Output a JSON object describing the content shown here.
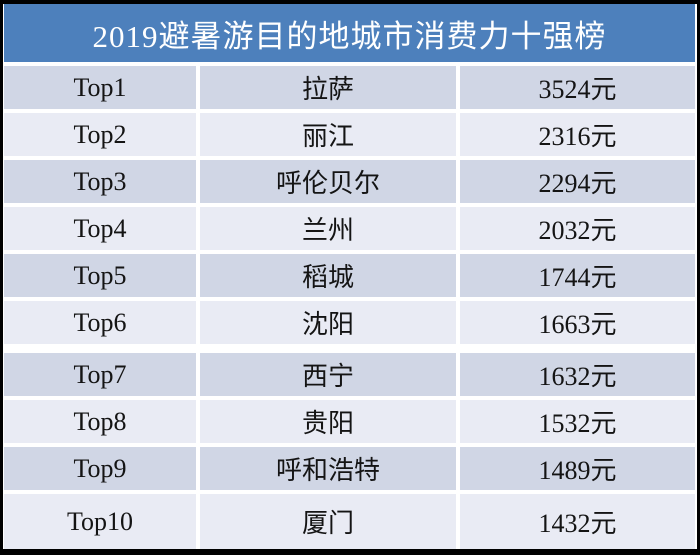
{
  "chart_data": {
    "type": "table",
    "title": "2019避暑游目的地城市消费力十强榜",
    "rows": [
      [
        "Top1",
        "拉萨",
        "3524元"
      ],
      [
        "Top2",
        "丽江",
        "2316元"
      ],
      [
        "Top3",
        "呼伦贝尔",
        "2294元"
      ],
      [
        "Top4",
        "兰州",
        "2032元"
      ],
      [
        "Top5",
        "稻城",
        "1744元"
      ],
      [
        "Top6",
        "沈阳",
        "1663元"
      ],
      [
        "Top7",
        "西宁",
        "1632元"
      ],
      [
        "Top8",
        "贵阳",
        "1532元"
      ],
      [
        "Top9",
        "呼和浩特",
        "1489元"
      ],
      [
        "Top10",
        "厦门",
        "1432元"
      ]
    ]
  },
  "colors": {
    "header_bg": "#4d80bc",
    "row_dark": "#d0d6e5",
    "row_light": "#e9ebf4",
    "border": "#000000",
    "title_text": "#ffffff",
    "row_text": "#141414"
  }
}
